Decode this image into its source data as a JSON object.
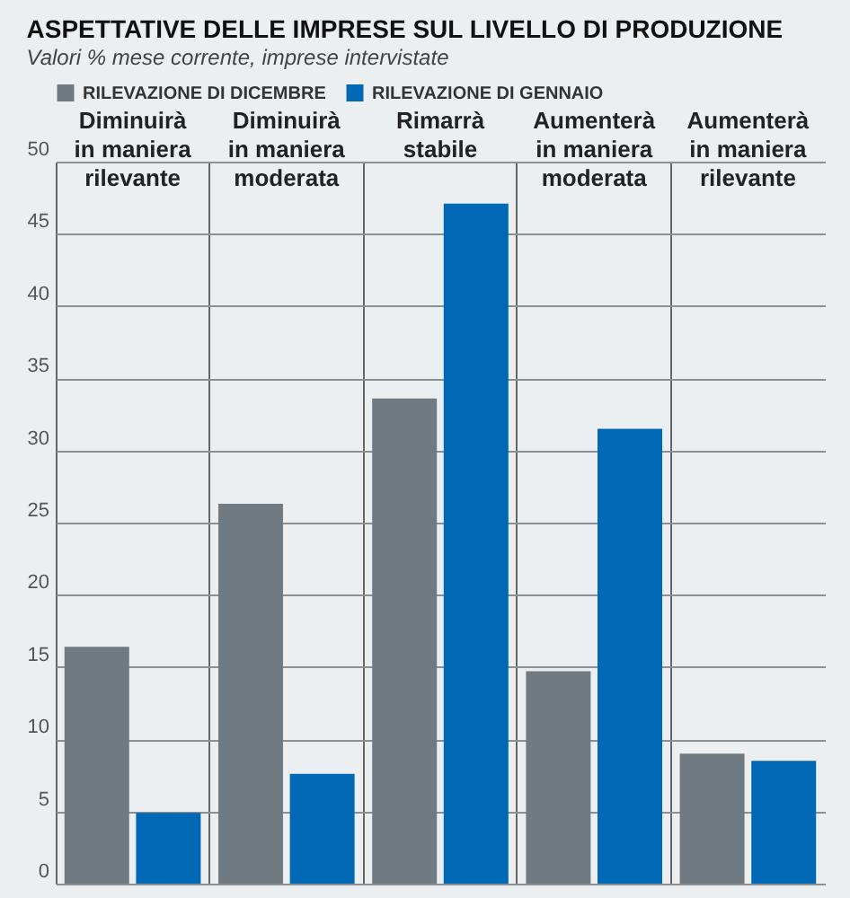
{
  "chart_data": {
    "type": "bar",
    "title": "ASPETTATIVE DELLE IMPRESE SUL LIVELLO DI PRODUZIONE",
    "subtitle": "Valori % mese corrente, imprese intervistate",
    "categories": [
      "Diminuirà in maniera rilevante",
      "Diminuirà in maniera moderata",
      "Rimarrà stabile",
      "Aumenterà in maniera moderata",
      "Aumenterà in maniera rilevante"
    ],
    "series": [
      {
        "name": "RILEVAZIONE DI DICEMBRE",
        "color": "#6f7a82",
        "values": [
          16.4,
          26.3,
          33.6,
          14.7,
          9.0
        ]
      },
      {
        "name": "RILEVAZIONE DI GENNAIO",
        "color": "#0068b4",
        "values": [
          4.9,
          7.6,
          47.1,
          31.5,
          8.5
        ]
      }
    ],
    "ylim": [
      0,
      50
    ],
    "yticks": [
      0,
      5,
      10,
      15,
      20,
      25,
      30,
      35,
      40,
      45,
      50
    ],
    "grid": true,
    "legend": "top left"
  }
}
